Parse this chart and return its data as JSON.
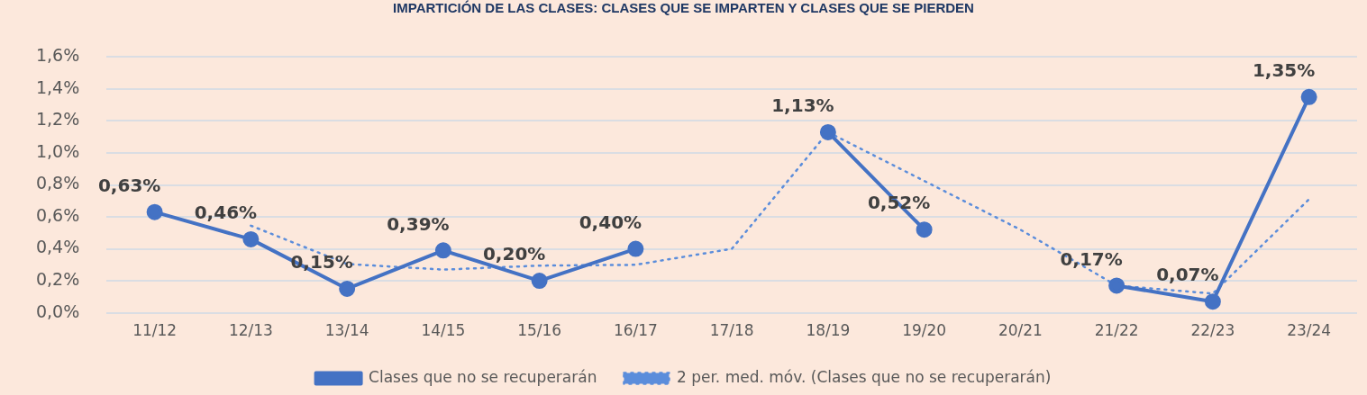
{
  "chart_data": {
    "type": "line",
    "title": "IMPARTICIÓN DE LAS CLASES: CLASES QUE SE IMPARTEN Y CLASES QUE SE PIERDEN",
    "categories": [
      "11/12",
      "12/13",
      "13/14",
      "14/15",
      "15/16",
      "16/17",
      "17/18",
      "18/19",
      "19/20",
      "20/21",
      "21/22",
      "22/23",
      "23/24"
    ],
    "series": [
      {
        "name": "Clases que no se recuperarán",
        "color": "#4472c4",
        "marker": "circle",
        "line_style": "solid",
        "values": [
          0.63,
          0.46,
          0.15,
          0.39,
          0.2,
          0.4,
          null,
          1.13,
          0.52,
          null,
          0.17,
          0.07,
          1.35
        ],
        "value_labels": [
          "0,63%",
          "0,46%",
          "0,15%",
          "0,39%",
          "0,20%",
          "0,40%",
          null,
          "1,13%",
          "0,52%",
          null,
          "0,17%",
          "0,07%",
          "1,35%"
        ]
      },
      {
        "name": "2 per. med. móv. (Clases que no se recuperarán)",
        "color": "#5b8ddb",
        "marker": "none",
        "line_style": "dotted",
        "values": [
          null,
          0.545,
          0.305,
          0.27,
          0.295,
          0.3,
          0.4,
          1.13,
          0.825,
          0.52,
          0.17,
          0.12,
          0.71
        ]
      }
    ],
    "ylim": [
      0,
      1.6
    ],
    "yticks": [
      {
        "value": 0,
        "label": "0,0%"
      },
      {
        "value": 0.2,
        "label": "0,2%"
      },
      {
        "value": 0.4,
        "label": "0,4%"
      },
      {
        "value": 0.6,
        "label": "0,6%"
      },
      {
        "value": 0.8,
        "label": "0,8%"
      },
      {
        "value": 1.0,
        "label": "1,0%"
      },
      {
        "value": 1.2,
        "label": "1,2%"
      },
      {
        "value": 1.4,
        "label": "1,4%"
      },
      {
        "value": 1.6,
        "label": "1,6%"
      }
    ],
    "grid": "y",
    "legend": "bottom"
  }
}
